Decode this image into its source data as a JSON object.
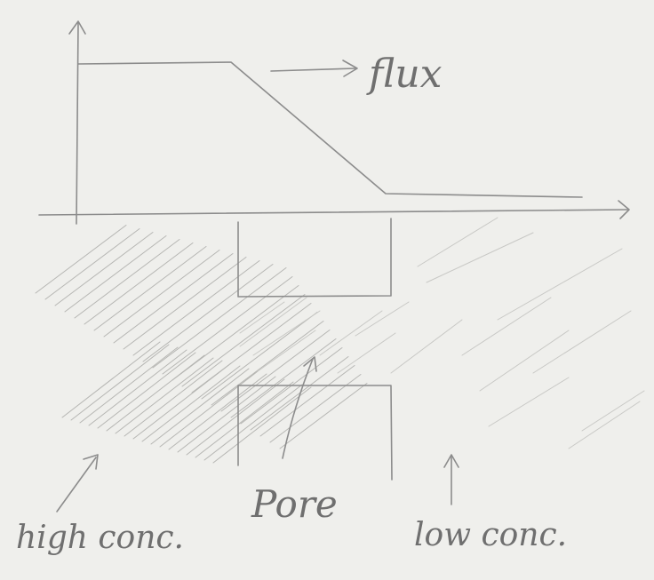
{
  "labels": {
    "flux": "flux",
    "pore": "Pore",
    "high_conc": "high conc.",
    "low_conc": "low conc."
  },
  "colors": {
    "paper": "#efefec",
    "pencil": "#8c8c8c"
  }
}
